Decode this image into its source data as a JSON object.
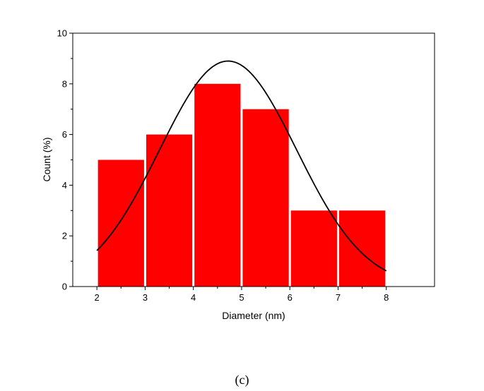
{
  "chart_data": {
    "type": "bar",
    "bins": [
      {
        "start": 2,
        "end": 3,
        "value": 5
      },
      {
        "start": 3,
        "end": 4,
        "value": 6
      },
      {
        "start": 4,
        "end": 5,
        "value": 8
      },
      {
        "start": 5,
        "end": 6,
        "value": 7
      },
      {
        "start": 6,
        "end": 7,
        "value": 3
      },
      {
        "start": 7,
        "end": 8,
        "value": 3
      }
    ],
    "fit_curve": {
      "type": "gaussian",
      "peak": 8.9,
      "center": 4.72,
      "sigma": 1.42,
      "x_range": [
        2,
        8
      ]
    },
    "xlabel": "Diameter (nm)",
    "ylabel": "Count (%)",
    "xlim": [
      1.5,
      9
    ],
    "ylim": [
      0,
      10
    ],
    "xticks": [
      2,
      3,
      4,
      5,
      6,
      7,
      8
    ],
    "yticks": [
      0,
      2,
      4,
      6,
      8,
      10
    ],
    "bar_color": "#ff0000",
    "curve_color": "#000000",
    "grid": false,
    "legend": "none"
  },
  "caption": "(c)"
}
